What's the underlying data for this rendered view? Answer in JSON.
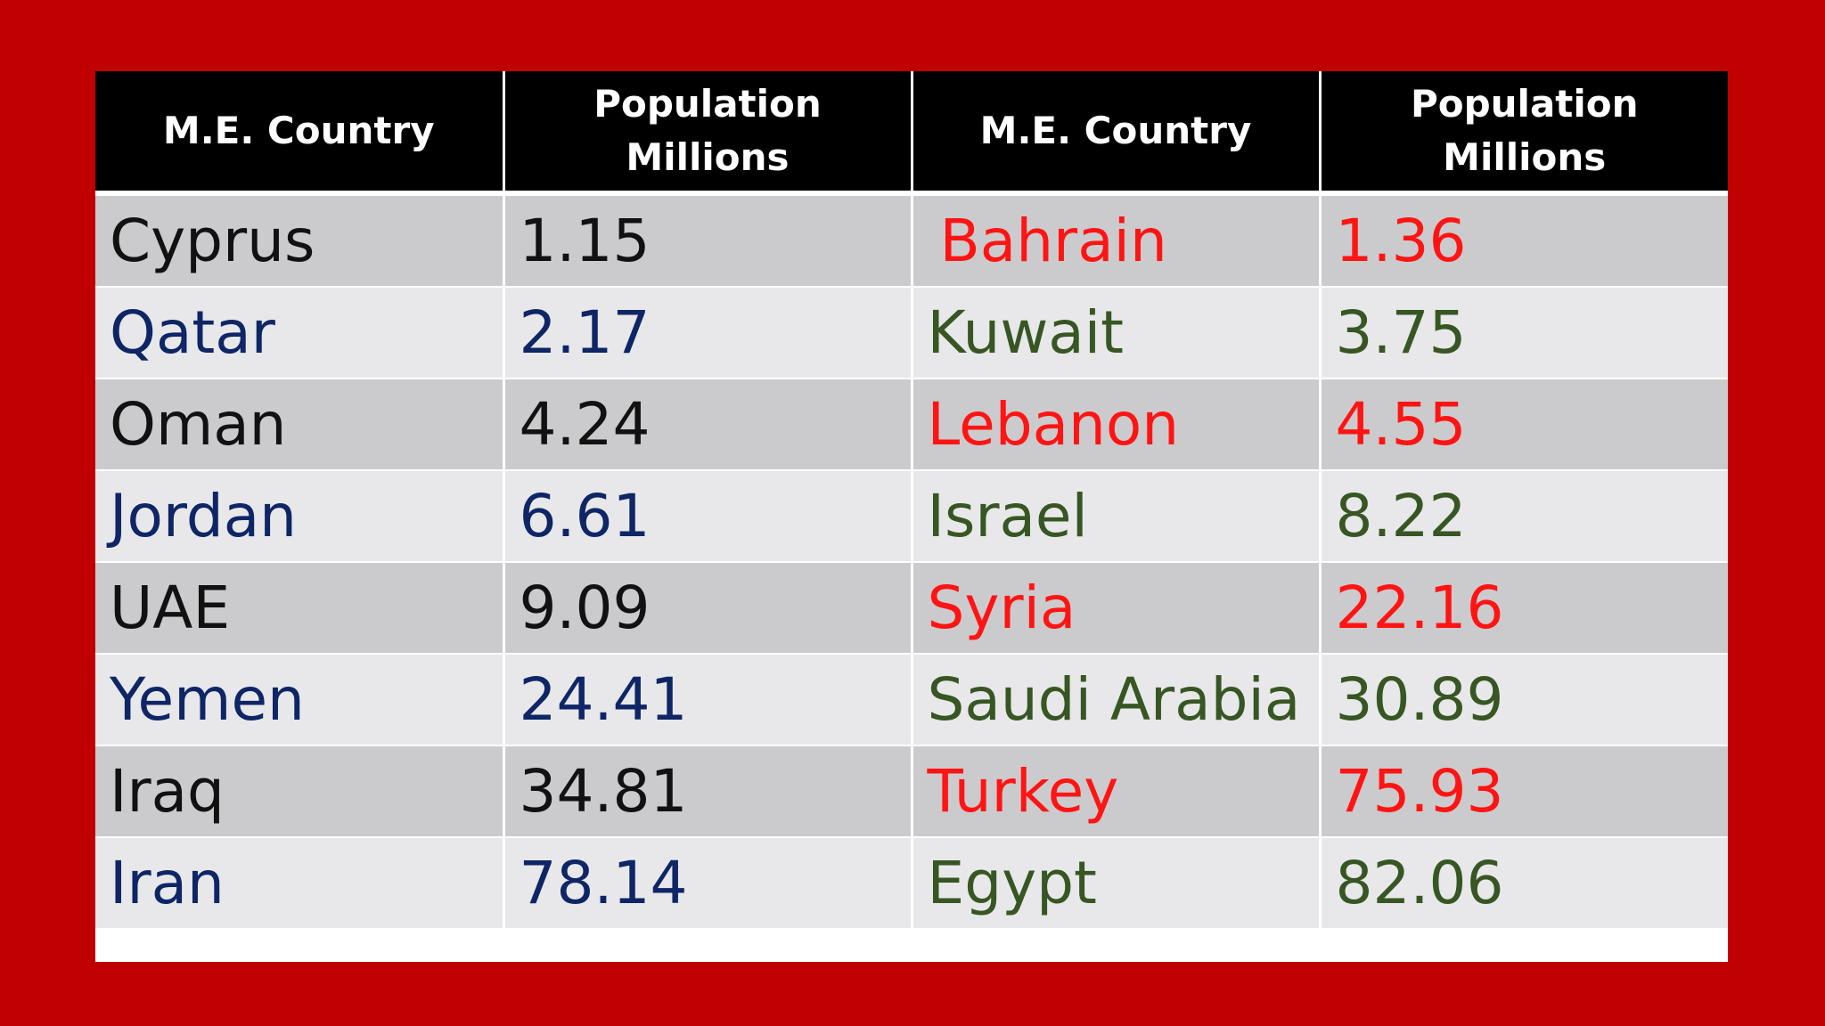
{
  "colors": {
    "background": "#c00000",
    "header_bg": "#000000",
    "header_text": "#ffffff",
    "row_dark": "#cbcbcd",
    "row_light": "#e8e8ea",
    "black_text": "#111111",
    "navy_text": "#0e2566",
    "red_text": "#ff1414",
    "green_text": "#375623"
  },
  "table": {
    "headers": [
      {
        "line1": "M.E. Country",
        "line2": ""
      },
      {
        "line1": "Population",
        "line2": "Millions"
      },
      {
        "line1": "M.E. Country",
        "line2": ""
      },
      {
        "line1": "Population",
        "line2": "Millions"
      }
    ],
    "rows": [
      {
        "left_country": "Cyprus",
        "left_pop": "1.15",
        "right_country": "Bahrain",
        "right_pop": "1.36"
      },
      {
        "left_country": "Qatar",
        "left_pop": "2.17",
        "right_country": "Kuwait",
        "right_pop": "3.75"
      },
      {
        "left_country": "Oman",
        "left_pop": "4.24",
        "right_country": "Lebanon",
        "right_pop": "4.55"
      },
      {
        "left_country": "Jordan",
        "left_pop": "6.61",
        "right_country": "Israel",
        "right_pop": "8.22"
      },
      {
        "left_country": "UAE",
        "left_pop": "9.09",
        "right_country": "Syria",
        "right_pop": "22.16"
      },
      {
        "left_country": "Yemen",
        "left_pop": "24.41",
        "right_country": "Saudi Arabia",
        "right_pop": "30.89"
      },
      {
        "left_country": "Iraq",
        "left_pop": "34.81",
        "right_country": "Turkey",
        "right_pop": "75.93"
      },
      {
        "left_country": "Iran",
        "left_pop": "78.14",
        "right_country": "Egypt",
        "right_pop": "82.06"
      }
    ]
  }
}
